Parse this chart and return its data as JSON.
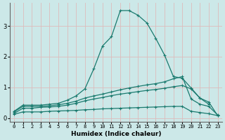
{
  "xlabel": "Humidex (Indice chaleur)",
  "bg_color": "#cce8e8",
  "line_color": "#1a7a6e",
  "grid_color": "#ddbbbb",
  "x_ticks": [
    0,
    1,
    2,
    3,
    4,
    5,
    6,
    7,
    8,
    9,
    10,
    11,
    12,
    13,
    14,
    15,
    16,
    17,
    18,
    19,
    20,
    21,
    22,
    23
  ],
  "yticks": [
    0,
    1,
    2,
    3
  ],
  "ylim": [
    -0.12,
    3.75
  ],
  "xlim": [
    -0.5,
    23.5
  ],
  "series": [
    {
      "x": [
        0,
        1,
        2,
        3,
        4,
        5,
        6,
        7,
        8,
        9,
        10,
        11,
        12,
        13,
        14,
        15,
        16,
        17,
        18,
        19,
        20,
        21,
        22
      ],
      "y": [
        0.22,
        0.42,
        0.42,
        0.42,
        0.45,
        0.48,
        0.58,
        0.72,
        0.95,
        1.6,
        2.35,
        2.65,
        3.5,
        3.5,
        3.35,
        3.1,
        2.6,
        2.05,
        1.35,
        1.3,
        0.98,
        0.65,
        0.45
      ]
    },
    {
      "x": [
        0,
        1,
        2,
        3,
        4,
        5,
        6,
        7,
        8,
        9,
        10,
        11,
        12,
        13,
        14,
        15,
        16,
        17,
        18,
        19,
        20,
        21,
        22,
        23
      ],
      "y": [
        0.2,
        0.38,
        0.38,
        0.38,
        0.4,
        0.43,
        0.48,
        0.55,
        0.65,
        0.72,
        0.78,
        0.85,
        0.92,
        0.98,
        1.03,
        1.08,
        1.12,
        1.18,
        1.28,
        1.35,
        0.62,
        0.45,
        0.38,
        0.1
      ]
    },
    {
      "x": [
        0,
        1,
        2,
        3,
        4,
        5,
        6,
        7,
        8,
        9,
        10,
        11,
        12,
        13,
        14,
        15,
        16,
        17,
        18,
        19,
        20,
        21,
        22,
        23
      ],
      "y": [
        0.15,
        0.32,
        0.32,
        0.35,
        0.36,
        0.38,
        0.42,
        0.48,
        0.56,
        0.62,
        0.67,
        0.73,
        0.78,
        0.82,
        0.86,
        0.9,
        0.93,
        0.97,
        1.02,
        1.06,
        0.95,
        0.65,
        0.52,
        0.08
      ]
    },
    {
      "x": [
        0,
        1,
        2,
        3,
        4,
        5,
        6,
        7,
        8,
        9,
        10,
        11,
        12,
        13,
        14,
        15,
        16,
        17,
        18,
        19,
        20,
        21,
        22,
        23
      ],
      "y": [
        0.12,
        0.2,
        0.2,
        0.2,
        0.22,
        0.23,
        0.24,
        0.25,
        0.27,
        0.28,
        0.3,
        0.31,
        0.32,
        0.33,
        0.34,
        0.35,
        0.36,
        0.37,
        0.38,
        0.38,
        0.22,
        0.18,
        0.14,
        0.08
      ]
    }
  ]
}
